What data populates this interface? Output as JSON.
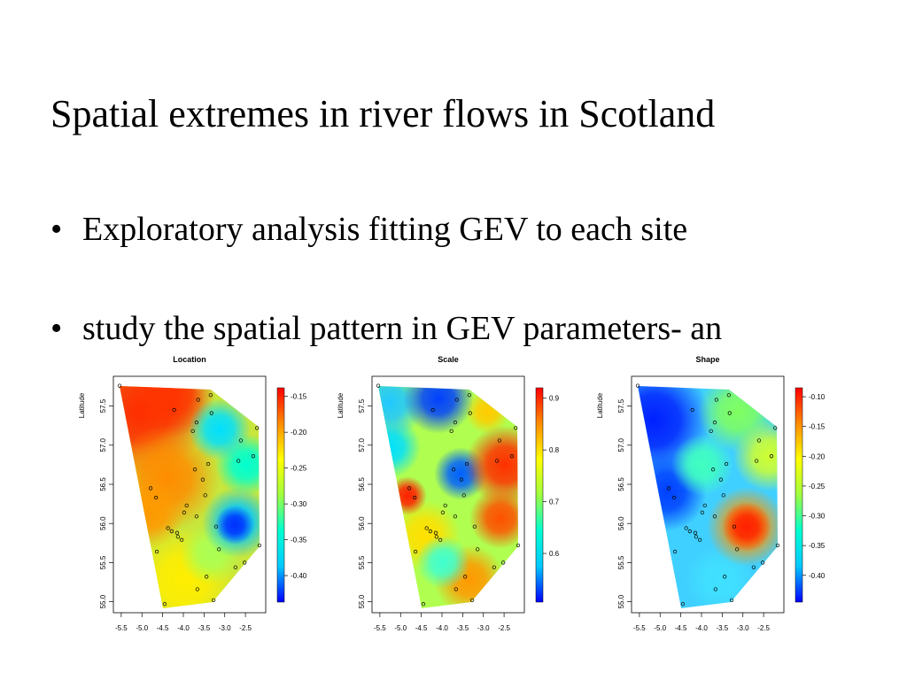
{
  "slide": {
    "title": "Spatial extremes in river flows in Scotland",
    "bullets": [
      "Exploratory analysis fitting GEV to each site",
      "study the spatial pattern in GEV parameters- an"
    ]
  },
  "chart_data": [
    {
      "type": "heatmap",
      "title": "Location",
      "ylabel": "Latitude",
      "xlim": [
        -5.69,
        -2.01
      ],
      "ylim": [
        54.86,
        57.88
      ],
      "xticks": [
        -5.5,
        {
          "value": -5,
          "label": "-5.0"
        },
        -4.5,
        {
          "value": -4,
          "label": "-4.0"
        },
        -3.5,
        {
          "value": -3,
          "label": "-3.0"
        },
        -2.5
      ],
      "yticks": [
        {
          "value": 55,
          "label": "55.0"
        },
        55.5,
        {
          "value": 56,
          "label": "56.0"
        },
        56.5,
        {
          "value": 57,
          "label": "57.0"
        },
        57.5
      ],
      "zlim": [
        -0.437,
        -0.138
      ],
      "zticks": [
        -0.15,
        {
          "value": -0.2,
          "label": "-0.20"
        },
        -0.25,
        {
          "value": -0.3,
          "label": "-0.30"
        },
        -0.35,
        {
          "value": -0.4,
          "label": "-0.40"
        }
      ],
      "colormap": [
        "#0000ff",
        "#00c8ff",
        "#00ffd0",
        "#a0ff40",
        "#ffff00",
        "#ff8c00",
        "#ff0000"
      ],
      "x": [
        -5.54,
        -3.34,
        -3.64,
        -4.22,
        -3.32,
        -3.68,
        -3.77,
        -2.22,
        -2.61,
        -2.31,
        -2.67,
        -3.4,
        -3.72,
        -3.53,
        -4.79,
        -4.66,
        -3.47,
        -3.92,
        -3.98,
        -3.68,
        -4.37,
        -4.28,
        -4.15,
        -4.13,
        -3.21,
        -2.16,
        -4.64,
        -4.04,
        -3.14,
        -3.44,
        -2.74,
        -2.52,
        -3.66,
        -3.27,
        -4.45
      ],
      "y": [
        57.76,
        57.64,
        57.58,
        57.45,
        57.41,
        57.29,
        57.18,
        57.22,
        57.06,
        56.86,
        56.8,
        56.76,
        56.69,
        56.56,
        56.45,
        56.33,
        56.36,
        56.23,
        56.14,
        56.09,
        55.94,
        55.9,
        55.88,
        55.83,
        55.96,
        55.72,
        55.64,
        55.79,
        55.67,
        55.32,
        55.44,
        55.5,
        55.16,
        55.02,
        54.97
      ]
    },
    {
      "type": "heatmap",
      "title": "Scale",
      "ylabel": "Latitude",
      "xlim": [
        -5.69,
        -2.01
      ],
      "ylim": [
        54.86,
        57.88
      ],
      "xticks": [
        -5.5,
        {
          "value": -5,
          "label": "-5.0"
        },
        -4.5,
        {
          "value": -4,
          "label": "-4.0"
        },
        -3.5,
        {
          "value": -3,
          "label": "-3.0"
        },
        -2.5
      ],
      "yticks": [
        {
          "value": 55,
          "label": "55.0"
        },
        55.5,
        {
          "value": 56,
          "label": "56.0"
        },
        56.5,
        {
          "value": 57,
          "label": "57.0"
        },
        57.5
      ],
      "zlim": [
        0.506,
        0.92
      ],
      "zticks": [
        0.9,
        0.8,
        0.7,
        0.6
      ],
      "colormap": [
        "#0000ff",
        "#00c8ff",
        "#00ffd0",
        "#a0ff40",
        "#ffff00",
        "#ff8c00",
        "#ff0000"
      ],
      "x": [
        -5.54,
        -3.34,
        -3.64,
        -4.22,
        -3.32,
        -3.68,
        -3.77,
        -2.22,
        -2.61,
        -2.31,
        -2.67,
        -3.4,
        -3.72,
        -3.53,
        -4.79,
        -4.66,
        -3.47,
        -3.92,
        -3.98,
        -3.68,
        -4.37,
        -4.28,
        -4.15,
        -4.13,
        -3.21,
        -2.16,
        -4.64,
        -4.04,
        -3.14,
        -3.44,
        -2.74,
        -2.52,
        -3.66,
        -3.27,
        -4.45
      ],
      "y": [
        57.76,
        57.64,
        57.58,
        57.45,
        57.41,
        57.29,
        57.18,
        57.22,
        57.06,
        56.86,
        56.8,
        56.76,
        56.69,
        56.56,
        56.45,
        56.33,
        56.36,
        56.23,
        56.14,
        56.09,
        55.94,
        55.9,
        55.88,
        55.83,
        55.96,
        55.72,
        55.64,
        55.79,
        55.67,
        55.32,
        55.44,
        55.5,
        55.16,
        55.02,
        54.97
      ]
    },
    {
      "type": "heatmap",
      "title": "Shape",
      "ylabel": "Latitude",
      "xlim": [
        -5.69,
        -2.01
      ],
      "ylim": [
        54.86,
        57.88
      ],
      "xticks": [
        -5.5,
        {
          "value": -5,
          "label": "-5.0"
        },
        -4.5,
        {
          "value": -4,
          "label": "-4.0"
        },
        -3.5,
        {
          "value": -3,
          "label": "-3.0"
        },
        -2.5
      ],
      "yticks": [
        {
          "value": 55,
          "label": "55.0"
        },
        55.5,
        {
          "value": 56,
          "label": "56.0"
        },
        56.5,
        {
          "value": 57,
          "label": "57.0"
        },
        57.5
      ],
      "zlim": [
        -0.445,
        -0.085
      ],
      "zticks": [
        {
          "value": -0.1,
          "label": "-0.10"
        },
        -0.15,
        {
          "value": -0.2,
          "label": "-0.20"
        },
        -0.25,
        {
          "value": -0.3,
          "label": "-0.30"
        },
        -0.35,
        {
          "value": -0.4,
          "label": "-0.40"
        }
      ],
      "colormap": [
        "#0000ff",
        "#00c8ff",
        "#00ffd0",
        "#a0ff40",
        "#ffff00",
        "#ff8c00",
        "#ff0000"
      ],
      "x": [
        -5.54,
        -3.34,
        -3.64,
        -4.22,
        -3.32,
        -3.68,
        -3.77,
        -2.22,
        -2.61,
        -2.31,
        -2.67,
        -3.4,
        -3.72,
        -3.53,
        -4.79,
        -4.66,
        -3.47,
        -3.92,
        -3.98,
        -3.68,
        -4.37,
        -4.28,
        -4.15,
        -4.13,
        -3.21,
        -2.16,
        -4.64,
        -4.04,
        -3.14,
        -3.44,
        -2.74,
        -2.52,
        -3.66,
        -3.27,
        -4.45
      ],
      "y": [
        57.76,
        57.64,
        57.58,
        57.45,
        57.41,
        57.29,
        57.18,
        57.22,
        57.06,
        56.86,
        56.8,
        56.76,
        56.69,
        56.56,
        56.45,
        56.33,
        56.36,
        56.23,
        56.14,
        56.09,
        55.94,
        55.9,
        55.88,
        55.83,
        55.96,
        55.72,
        55.64,
        55.79,
        55.67,
        55.32,
        55.44,
        55.5,
        55.16,
        55.02,
        54.97
      ]
    }
  ]
}
